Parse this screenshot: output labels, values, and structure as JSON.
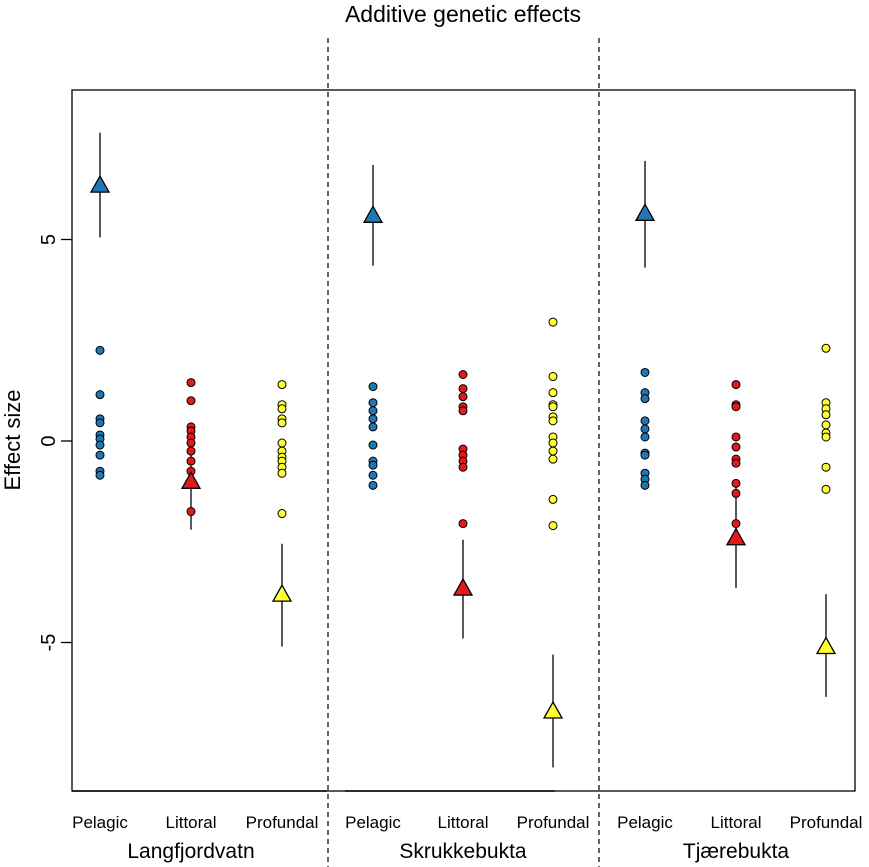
{
  "chart_data": {
    "type": "scatter",
    "title": "Additive genetic effects",
    "ylabel": "Effect size",
    "ylim": [
      -8.7,
      8.7
    ],
    "yticks": [
      -5,
      0,
      5
    ],
    "categories": [
      "Pelagic",
      "Littoral",
      "Profundal"
    ],
    "groups": [
      "Langfjordvatn",
      "Skrukkebukta",
      "Tjærebukta"
    ],
    "colors": {
      "Pelagic": "#1f78b4",
      "Littoral": "#e31a1c",
      "Profundal": "#ffff33"
    },
    "panels": [
      {
        "group": "Langfjordvatn",
        "series": [
          {
            "category": "Pelagic",
            "points": [
              2.25,
              1.15,
              0.55,
              0.45,
              0.15,
              0.05,
              -0.1,
              -0.35,
              -0.75,
              -0.85
            ],
            "mean": 6.35,
            "ci": [
              5.05,
              7.65
            ]
          },
          {
            "category": "Littoral",
            "points": [
              1.45,
              1.0,
              0.35,
              0.25,
              0.1,
              -0.05,
              -0.25,
              -0.5,
              -0.75,
              -1.0,
              -1.75
            ],
            "mean": -1.0,
            "ci": [
              -2.2,
              0.15
            ]
          },
          {
            "category": "Profundal",
            "points": [
              1.4,
              0.9,
              0.8,
              0.55,
              0.45,
              -0.05,
              -0.25,
              -0.4,
              -0.5,
              -0.65,
              -0.8,
              -1.8
            ],
            "mean": -3.8,
            "ci": [
              -5.1,
              -2.55
            ]
          }
        ]
      },
      {
        "group": "Skrukkebukta",
        "series": [
          {
            "category": "Pelagic",
            "points": [
              1.35,
              0.95,
              0.75,
              0.55,
              0.35,
              -0.1,
              -0.5,
              -0.6,
              -0.85,
              -1.1
            ],
            "mean": 5.6,
            "ci": [
              4.35,
              6.85
            ]
          },
          {
            "category": "Littoral",
            "points": [
              1.65,
              1.3,
              1.1,
              0.85,
              0.75,
              -0.2,
              -0.35,
              -0.5,
              -0.65,
              -2.05
            ],
            "mean": -3.65,
            "ci": [
              -4.9,
              -2.45
            ]
          },
          {
            "category": "Profundal",
            "points": [
              2.95,
              1.6,
              1.2,
              0.9,
              0.85,
              0.6,
              0.5,
              0.1,
              -0.05,
              -0.25,
              -0.45,
              -1.45,
              -2.1
            ],
            "mean": -6.7,
            "ci": [
              -8.1,
              -5.3
            ]
          }
        ]
      },
      {
        "group": "Tjærebukta",
        "series": [
          {
            "category": "Pelagic",
            "points": [
              1.7,
              1.2,
              1.05,
              0.5,
              0.3,
              0.1,
              -0.3,
              -0.35,
              -0.8,
              -0.95,
              -1.1
            ],
            "mean": 5.65,
            "ci": [
              4.3,
              6.95
            ]
          },
          {
            "category": "Littoral",
            "points": [
              1.4,
              0.9,
              0.85,
              0.1,
              -0.15,
              -0.45,
              -0.55,
              -1.05,
              -1.3,
              -2.05
            ],
            "mean": -2.4,
            "ci": [
              -3.65,
              -1.1
            ]
          },
          {
            "category": "Profundal",
            "points": [
              2.3,
              0.95,
              0.8,
              0.65,
              0.4,
              0.2,
              0.1,
              -0.65,
              -1.2
            ],
            "mean": -5.1,
            "ci": [
              -6.35,
              -3.8
            ]
          }
        ]
      }
    ]
  }
}
